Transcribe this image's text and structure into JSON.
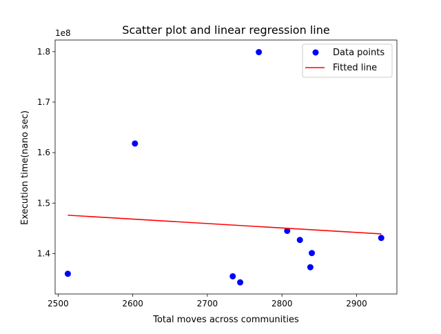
{
  "chart_data": {
    "type": "scatter",
    "title": "Scatter plot and linear regression line",
    "xlabel": "Total moves across communities",
    "ylabel": "Execution time(nano sec)",
    "y_offset_label": "1e8",
    "xlim": [
      2496,
      2954
    ],
    "ylim": [
      132000000,
      182300000
    ],
    "xticks": [
      2500,
      2600,
      2700,
      2800,
      2900
    ],
    "xtick_labels": [
      "2500",
      "2600",
      "2700",
      "2800",
      "2900"
    ],
    "yticks": [
      140000000,
      150000000,
      160000000,
      170000000,
      180000000
    ],
    "ytick_labels": [
      "1.4",
      "1.5",
      "1.6",
      "1.7",
      "1.8"
    ],
    "legend_position": "top-right",
    "grid": false,
    "series": [
      {
        "name": "Data points",
        "kind": "scatter",
        "color": "#0000ff",
        "points": [
          {
            "x": 2513,
            "y": 136000000
          },
          {
            "x": 2603,
            "y": 161800000
          },
          {
            "x": 2734,
            "y": 135500000
          },
          {
            "x": 2744,
            "y": 134300000
          },
          {
            "x": 2769,
            "y": 179900000
          },
          {
            "x": 2807,
            "y": 144500000
          },
          {
            "x": 2824,
            "y": 142700000
          },
          {
            "x": 2838,
            "y": 137300000
          },
          {
            "x": 2840,
            "y": 140100000
          },
          {
            "x": 2933,
            "y": 143100000
          }
        ]
      },
      {
        "name": "Fitted line",
        "kind": "line",
        "color": "#ff0000",
        "points": [
          {
            "x": 2513,
            "y": 147600000
          },
          {
            "x": 2933,
            "y": 143900000
          }
        ]
      }
    ]
  }
}
